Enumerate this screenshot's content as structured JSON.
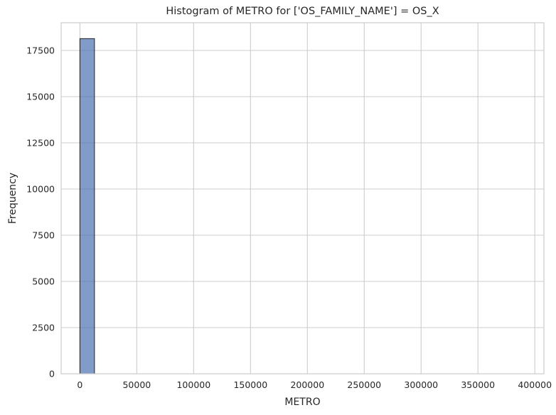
{
  "chart_data": {
    "type": "bar",
    "title": "Histogram of METRO for ['OS_FAMILY_NAME'] = OS_X",
    "xlabel": "METRO",
    "ylabel": "Frequency",
    "xlim": [
      -16500,
      408000
    ],
    "ylim": [
      0,
      19000
    ],
    "xticks": [
      0,
      50000,
      100000,
      150000,
      200000,
      250000,
      300000,
      350000,
      400000
    ],
    "yticks": [
      0,
      2500,
      5000,
      7500,
      10000,
      12500,
      15000,
      17500
    ],
    "bins": [
      {
        "x0": 0,
        "x1": 12800,
        "count": 18140
      }
    ],
    "bar_color": "#4c72b0",
    "bar_opacity": 0.7,
    "grid": true
  }
}
